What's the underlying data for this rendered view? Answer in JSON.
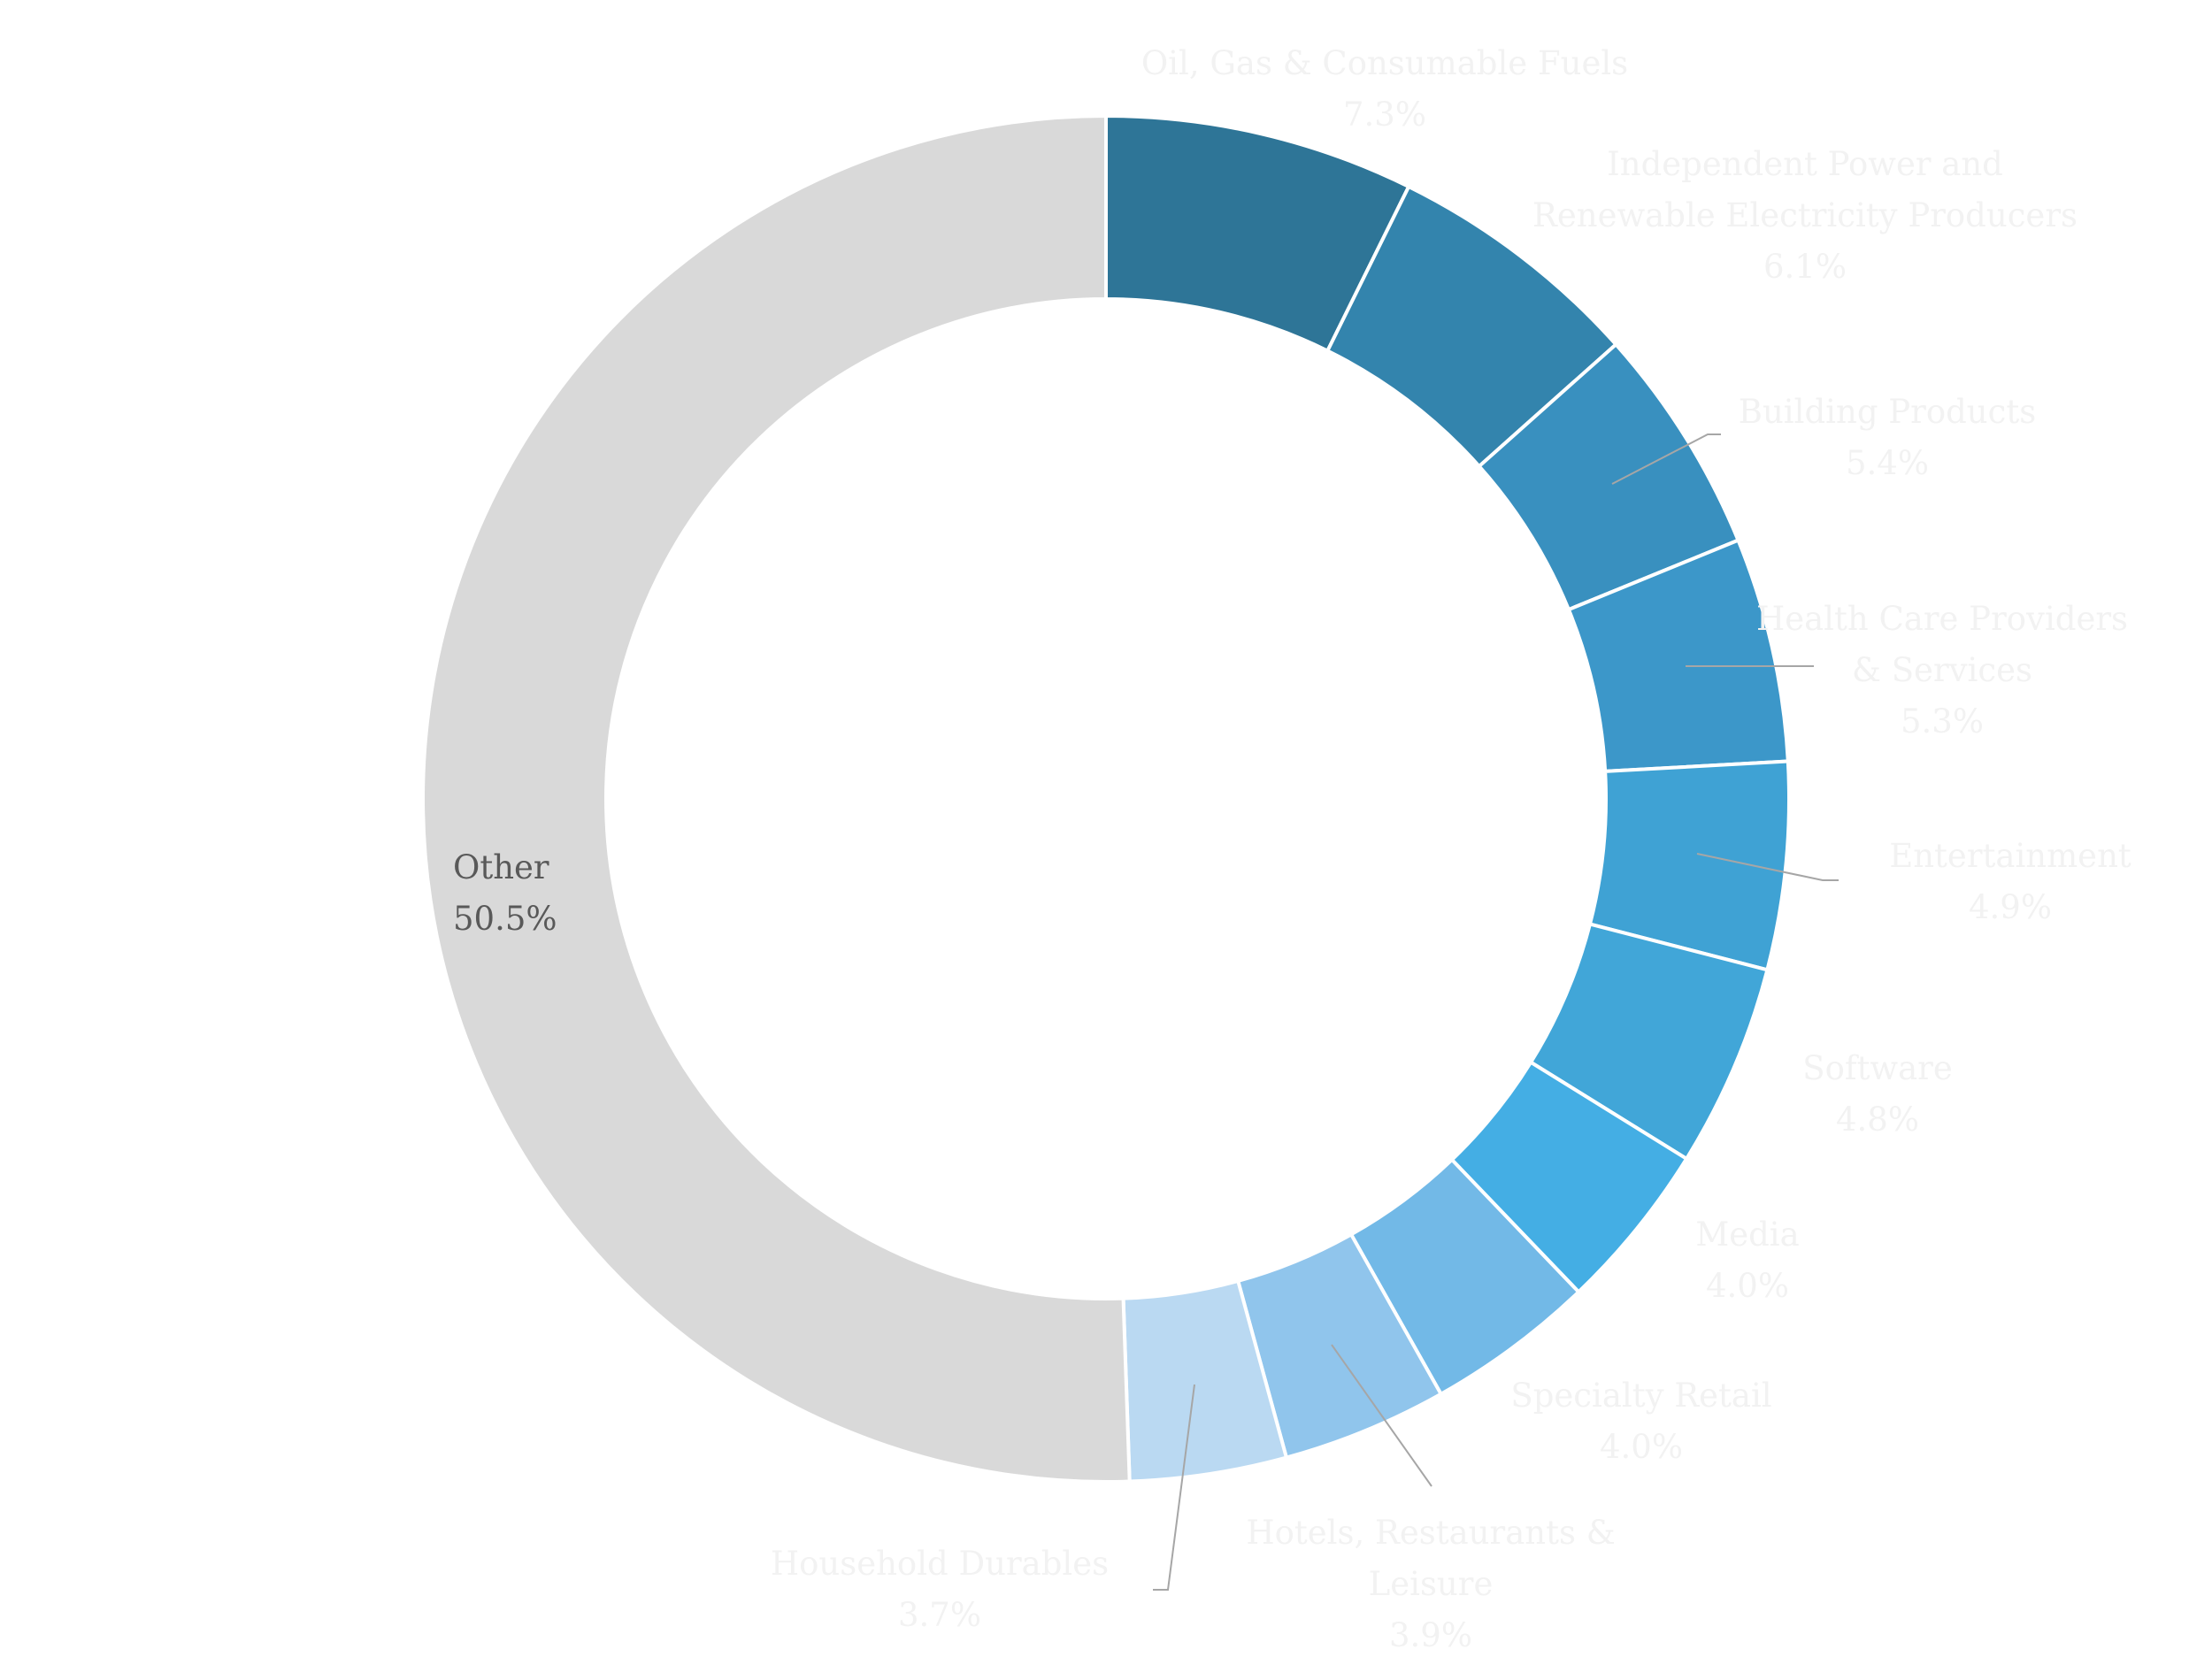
{
  "chart_data": {
    "type": "pie",
    "variant": "donut",
    "title": "",
    "legend": "none",
    "slices": [
      {
        "label": [
          "Oil, Gas & Consumable Fuels"
        ],
        "value_label": "7.3%",
        "value": 7.3,
        "color": "#2e7597"
      },
      {
        "label": [
          "Independent Power and",
          "Renewable Electricity Producers"
        ],
        "value_label": "6.1%",
        "value": 6.1,
        "color": "#3384ad"
      },
      {
        "label": [
          "Building Products"
        ],
        "value_label": "5.4%",
        "value": 5.4,
        "color": "#3990bf"
      },
      {
        "label": [
          "Health Care Providers",
          "& Services"
        ],
        "value_label": "5.3%",
        "value": 5.3,
        "color": "#3c97c9"
      },
      {
        "label": [
          "Entertainment"
        ],
        "value_label": "4.9%",
        "value": 4.9,
        "color": "#3fa2d4"
      },
      {
        "label": [
          "Software"
        ],
        "value_label": "4.8%",
        "value": 4.8,
        "color": "#41a6d8"
      },
      {
        "label": [
          "Media"
        ],
        "value_label": "4.0%",
        "value": 4.0,
        "color": "#44aee4"
      },
      {
        "label": [
          "Specialty Retail"
        ],
        "value_label": "4.0%",
        "value": 4.0,
        "color": "#72b9e7"
      },
      {
        "label": [
          "Hotels, Restaurants &",
          "Leisure"
        ],
        "value_label": "3.9%",
        "value": 3.9,
        "color": "#90c5ec"
      },
      {
        "label": [
          "Household Durables"
        ],
        "value_label": "3.7%",
        "value": 3.7,
        "color": "#bad9f2"
      },
      {
        "label": [
          "Other"
        ],
        "value_label": "50.5%",
        "value": 50.5,
        "color": "#d9d9d9"
      }
    ],
    "label_colors": {
      "light": "#f2f2f2",
      "dark": "#595959"
    },
    "leader_color": "#a6a6a6"
  }
}
